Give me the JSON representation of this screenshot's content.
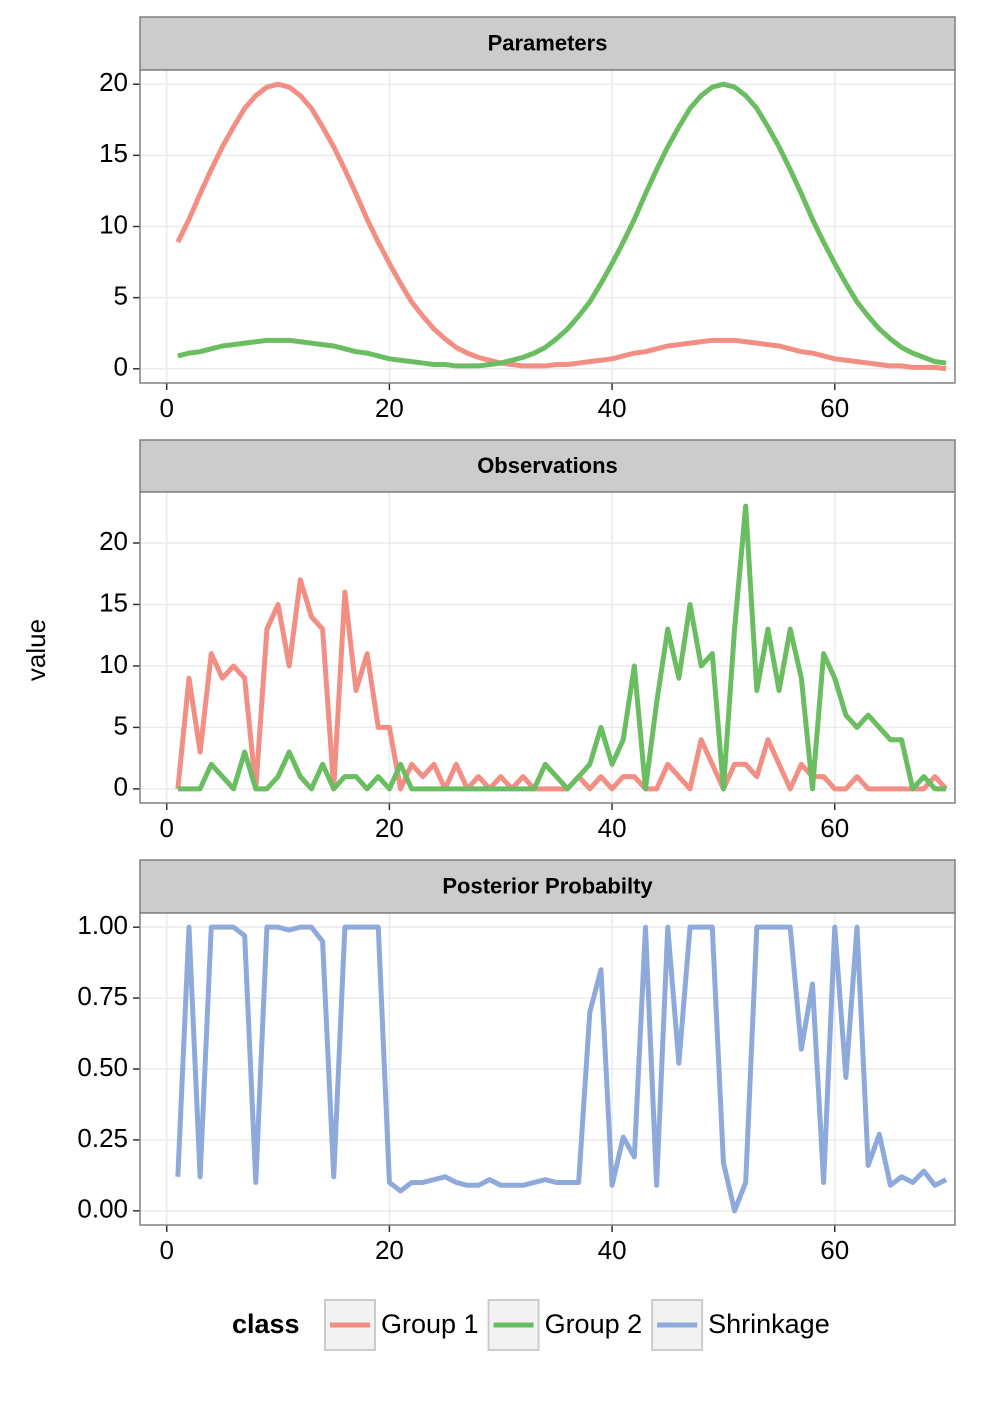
{
  "y_label": "value",
  "legend_title": "class",
  "chart_data": [
    {
      "type": "line",
      "title": "Parameters",
      "x": [
        1,
        2,
        3,
        4,
        5,
        6,
        7,
        8,
        9,
        10,
        11,
        12,
        13,
        14,
        15,
        16,
        17,
        18,
        19,
        20,
        21,
        22,
        23,
        24,
        25,
        26,
        27,
        28,
        29,
        30,
        31,
        32,
        33,
        34,
        35,
        36,
        37,
        38,
        39,
        40,
        41,
        42,
        43,
        44,
        45,
        46,
        47,
        48,
        49,
        50,
        51,
        52,
        53,
        54,
        55,
        56,
        57,
        58,
        59,
        60,
        61,
        62,
        63,
        64,
        65,
        66,
        67,
        68,
        69,
        70
      ],
      "series": [
        {
          "name": "Group 1",
          "color": "#f28e83",
          "values": [
            8.9,
            10.5,
            12.3,
            14.0,
            15.6,
            17.0,
            18.3,
            19.2,
            19.8,
            20.0,
            19.8,
            19.2,
            18.3,
            17.0,
            15.6,
            14.0,
            12.3,
            10.5,
            8.9,
            7.4,
            6.0,
            4.7,
            3.7,
            2.8,
            2.1,
            1.5,
            1.1,
            0.8,
            0.6,
            0.4,
            0.3,
            0.2,
            0.2,
            0.2,
            0.3,
            0.3,
            0.4,
            0.5,
            0.6,
            0.7,
            0.9,
            1.1,
            1.2,
            1.4,
            1.6,
            1.7,
            1.8,
            1.9,
            2.0,
            2.0,
            2.0,
            1.9,
            1.8,
            1.7,
            1.6,
            1.4,
            1.2,
            1.1,
            0.9,
            0.7,
            0.6,
            0.5,
            0.4,
            0.3,
            0.2,
            0.2,
            0.1,
            0.1,
            0.1,
            0.0
          ]
        },
        {
          "name": "Group 2",
          "color": "#6abd60",
          "values": [
            0.9,
            1.1,
            1.2,
            1.4,
            1.6,
            1.7,
            1.8,
            1.9,
            2.0,
            2.0,
            2.0,
            1.9,
            1.8,
            1.7,
            1.6,
            1.4,
            1.2,
            1.1,
            0.9,
            0.7,
            0.6,
            0.5,
            0.4,
            0.3,
            0.3,
            0.2,
            0.2,
            0.2,
            0.3,
            0.4,
            0.6,
            0.8,
            1.1,
            1.5,
            2.1,
            2.8,
            3.7,
            4.7,
            6.0,
            7.4,
            8.9,
            10.5,
            12.3,
            14.0,
            15.6,
            17.0,
            18.3,
            19.2,
            19.8,
            20.0,
            19.8,
            19.2,
            18.3,
            17.0,
            15.6,
            14.0,
            12.3,
            10.5,
            8.9,
            7.4,
            6.0,
            4.7,
            3.7,
            2.8,
            2.1,
            1.5,
            1.1,
            0.8,
            0.5,
            0.4
          ]
        }
      ],
      "xlim": [
        -2.4,
        70.8
      ],
      "xticks": [
        0,
        20,
        40,
        60
      ],
      "ylim": [
        -1,
        21
      ],
      "yticks": [
        0,
        5,
        10,
        15,
        20
      ],
      "grid": true
    },
    {
      "type": "line",
      "title": "Observations",
      "x": [
        1,
        2,
        3,
        4,
        5,
        6,
        7,
        8,
        9,
        10,
        11,
        12,
        13,
        14,
        15,
        16,
        17,
        18,
        19,
        20,
        21,
        22,
        23,
        24,
        25,
        26,
        27,
        28,
        29,
        30,
        31,
        32,
        33,
        34,
        35,
        36,
        37,
        38,
        39,
        40,
        41,
        42,
        43,
        44,
        45,
        46,
        47,
        48,
        49,
        50,
        51,
        52,
        53,
        54,
        55,
        56,
        57,
        58,
        59,
        60,
        61,
        62,
        63,
        64,
        65,
        66,
        67,
        68,
        69,
        70
      ],
      "series": [
        {
          "name": "Group 1",
          "color": "#f28e83",
          "values": [
            0,
            9,
            3,
            11,
            9,
            10,
            9,
            0,
            13,
            15,
            10,
            17,
            14,
            13,
            0,
            16,
            8,
            11,
            5,
            5,
            0,
            2,
            1,
            2,
            0,
            2,
            0,
            1,
            0,
            1,
            0,
            1,
            0,
            0,
            0,
            0,
            1,
            0,
            1,
            0,
            1,
            1,
            0,
            0,
            2,
            1,
            0,
            4,
            2,
            0,
            2,
            2,
            1,
            4,
            2,
            0,
            2,
            1,
            1,
            0,
            0,
            1,
            0,
            0,
            0,
            0,
            0,
            0,
            1,
            0
          ]
        },
        {
          "name": "Group 2",
          "color": "#6abd60",
          "values": [
            0,
            0,
            0,
            2,
            1,
            0,
            3,
            0,
            0,
            1,
            3,
            1,
            0,
            2,
            0,
            1,
            1,
            0,
            1,
            0,
            2,
            0,
            0,
            0,
            0,
            0,
            0,
            0,
            0,
            0,
            0,
            0,
            0,
            2,
            1,
            0,
            1,
            2,
            5,
            2,
            4,
            10,
            0,
            7,
            13,
            9,
            15,
            10,
            11,
            0,
            13,
            23,
            8,
            13,
            8,
            13,
            9,
            0,
            11,
            9,
            6,
            5,
            6,
            5,
            4,
            4,
            0,
            1,
            0,
            0
          ]
        }
      ],
      "xlim": [
        -2.4,
        70.8
      ],
      "xticks": [
        0,
        20,
        40,
        60
      ],
      "ylim": [
        -1.15,
        24.15
      ],
      "yticks": [
        0,
        5,
        10,
        15,
        20
      ],
      "grid": true
    },
    {
      "type": "line",
      "title": "Posterior Probabilty",
      "x": [
        1,
        2,
        3,
        4,
        5,
        6,
        7,
        8,
        9,
        10,
        11,
        12,
        13,
        14,
        15,
        16,
        17,
        18,
        19,
        20,
        21,
        22,
        23,
        24,
        25,
        26,
        27,
        28,
        29,
        30,
        31,
        32,
        33,
        34,
        35,
        36,
        37,
        38,
        39,
        40,
        41,
        42,
        43,
        44,
        45,
        46,
        47,
        48,
        49,
        50,
        51,
        52,
        53,
        54,
        55,
        56,
        57,
        58,
        59,
        60,
        61,
        62,
        63,
        64,
        65,
        66,
        67,
        68,
        69,
        70
      ],
      "series": [
        {
          "name": "Shrinkage",
          "color": "#8ea9db",
          "values": [
            0.12,
            1,
            0.12,
            1,
            1,
            1,
            0.97,
            0.1,
            1,
            1,
            0.99,
            1,
            1,
            0.95,
            0.12,
            1,
            1,
            1,
            1,
            0.1,
            0.07,
            0.1,
            0.1,
            0.11,
            0.12,
            0.1,
            0.09,
            0.09,
            0.11,
            0.09,
            0.09,
            0.09,
            0.1,
            0.11,
            0.1,
            0.1,
            0.1,
            0.7,
            0.85,
            0.09,
            0.26,
            0.19,
            1,
            0.09,
            1,
            0.52,
            1,
            1,
            1,
            0.17,
            0,
            0.1,
            1,
            1,
            1,
            1,
            0.57,
            0.8,
            0.1,
            1,
            0.47,
            1,
            0.16,
            0.27,
            0.09,
            0.12,
            0.1,
            0.14,
            0.09,
            0.11
          ]
        }
      ],
      "xlim": [
        -2.4,
        70.8
      ],
      "xticks": [
        0,
        20,
        40,
        60
      ],
      "ylim": [
        -0.05,
        1.05
      ],
      "yticks": [
        {
          "value": 0,
          "label": "0.00"
        },
        {
          "value": 0.25,
          "label": "0.25"
        },
        {
          "value": 0.5,
          "label": "0.50"
        },
        {
          "value": 0.75,
          "label": "0.75"
        },
        {
          "value": 1,
          "label": "1.00"
        }
      ],
      "grid": true
    }
  ]
}
